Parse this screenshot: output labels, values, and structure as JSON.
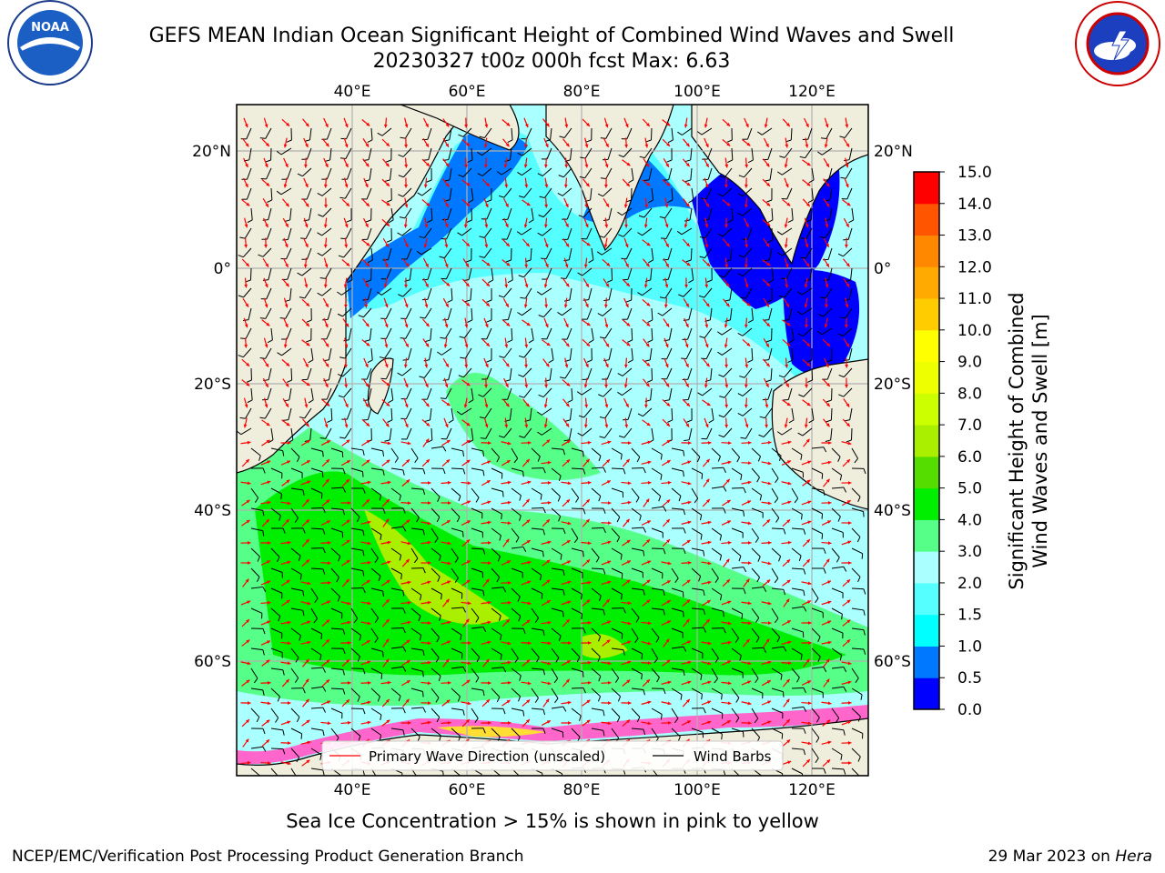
{
  "header": {
    "title_line1": "GEFS MEAN Indian Ocean Significant Height of Combined Wind Waves and Swell",
    "title_line2": "20230327 t00z 000h fcst   Max: 6.63"
  },
  "logos": {
    "left": {
      "name": "NOAA",
      "ring_text": "NATIONAL OCEANIC AND ATMOSPHERIC ADMINISTRATION · U.S. DEPARTMENT OF COMMERCE"
    },
    "right": {
      "name": "NATIONAL WEATHER SERVICE"
    }
  },
  "map": {
    "lon_labels": [
      "40°E",
      "60°E",
      "80°E",
      "100°E",
      "120°E"
    ],
    "lat_labels": [
      "20°N",
      "0°",
      "20°S",
      "40°S",
      "60°S"
    ],
    "legend": {
      "wave_direction": "Primary Wave Direction (unscaled)",
      "wind_barbs": "Wind Barbs"
    },
    "colors": {
      "land": "#efeddc",
      "wave_arrow": "#ff0000",
      "wind_barb": "#000000",
      "grid": "#b0b0b0"
    }
  },
  "colorbar": {
    "label_line1": "Significant Height of Combined",
    "label_line2": "Wind Waves and Swell [m]",
    "ticks": [
      "0.0",
      "0.5",
      "1.0",
      "1.5",
      "2.0",
      "3.0",
      "4.0",
      "5.0",
      "6.0",
      "7.0",
      "8.0",
      "9.0",
      "10.0",
      "11.0",
      "12.0",
      "13.0",
      "14.0",
      "15.0"
    ],
    "colors": [
      "#0000ff",
      "#0078ff",
      "#00ffff",
      "#55ffff",
      "#aaffff",
      "#55ff88",
      "#00ee00",
      "#55dd00",
      "#aaee00",
      "#ccff00",
      "#eeff00",
      "#ffff00",
      "#ffcc00",
      "#ffaa00",
      "#ff8800",
      "#ff5500",
      "#ff0000"
    ]
  },
  "caption": "Sea Ice Concentration > 15% is shown in pink to yellow",
  "footer": {
    "left": "NCEP/EMC/Verification Post Processing Product Generation Branch",
    "right_date": "29 Mar 2023 on ",
    "right_host": "Hera"
  }
}
